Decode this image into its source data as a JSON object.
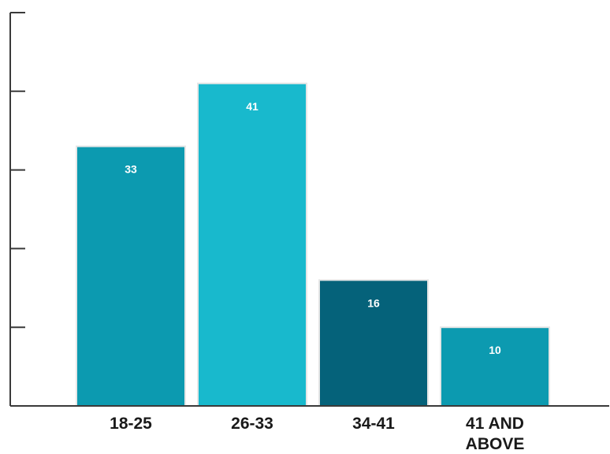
{
  "chart_data": {
    "type": "bar",
    "title": "",
    "xlabel": "",
    "ylabel": "",
    "categories": [
      [
        "18-25"
      ],
      [
        "26-33"
      ],
      [
        "34-41"
      ],
      [
        "41 AND",
        "ABOVE"
      ]
    ],
    "values": [
      33,
      41,
      16,
      10
    ],
    "data_labels": [
      "33",
      "41",
      "16",
      "10"
    ],
    "colors": [
      "#0c9ab0",
      "#18b9cd",
      "#05627a",
      "#0c9ab0"
    ],
    "ylim": [
      0,
      50
    ],
    "yticks": [
      0,
      10,
      20,
      30,
      40,
      50
    ],
    "ytick_labels_shown": false,
    "grid": false,
    "legend": "none"
  }
}
